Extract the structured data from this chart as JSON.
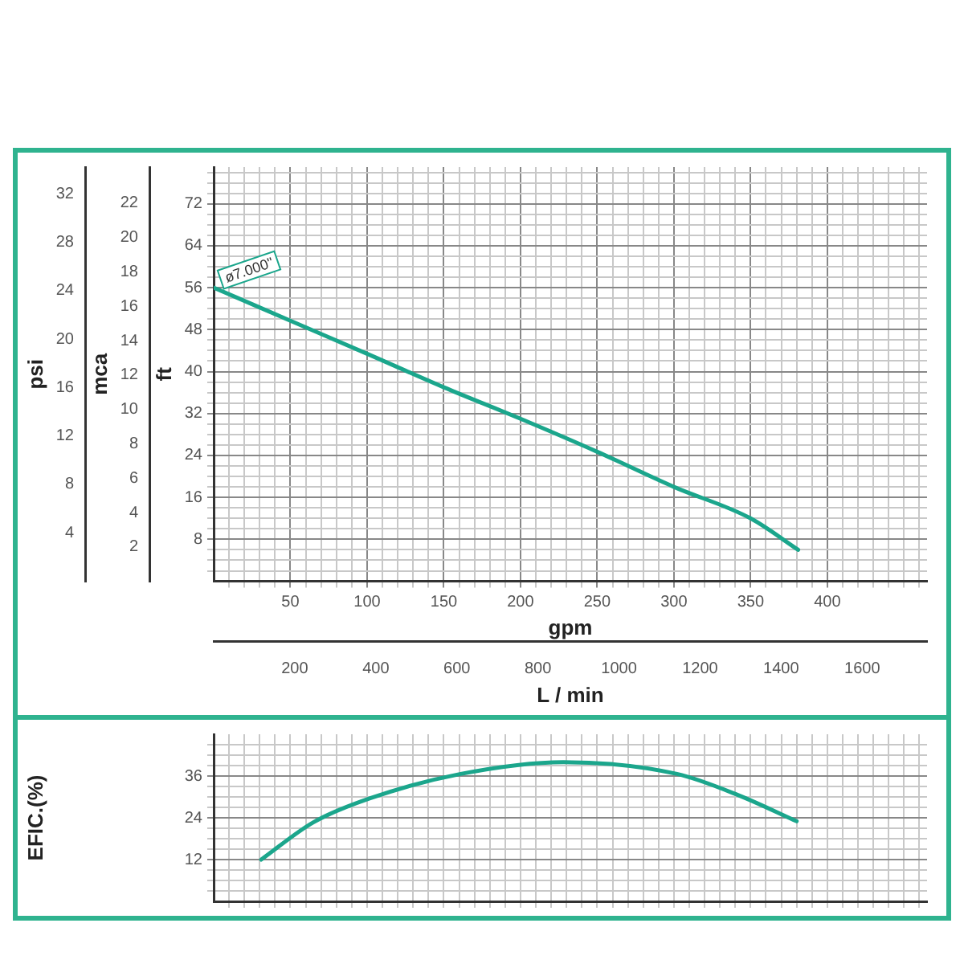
{
  "chart_data": [
    {
      "type": "line",
      "xlabel": "gpm",
      "x2label": "L / min",
      "ylabel": "ft",
      "y2label": "mca",
      "y3label": "psi",
      "xlim": [
        0,
        465
      ],
      "xticks": [
        {
          "value": 10,
          "label": null
        },
        {
          "value": 20,
          "label": null
        },
        {
          "value": 30,
          "label": null
        },
        {
          "value": 40,
          "label": null
        },
        50,
        {
          "value": 60,
          "label": null
        },
        {
          "value": 70,
          "label": null
        },
        {
          "value": 80,
          "label": null
        },
        {
          "value": 90,
          "label": null
        },
        100,
        {
          "value": 110,
          "label": null
        },
        {
          "value": 120,
          "label": null
        },
        {
          "value": 130,
          "label": null
        },
        {
          "value": 140,
          "label": null
        },
        150,
        {
          "value": 160,
          "label": null
        },
        {
          "value": 170,
          "label": null
        },
        {
          "value": 180,
          "label": null
        },
        {
          "value": 190,
          "label": null
        },
        200,
        {
          "value": 210,
          "label": null
        },
        {
          "value": 220,
          "label": null
        },
        {
          "value": 230,
          "label": null
        },
        {
          "value": 240,
          "label": null
        },
        250,
        {
          "value": 260,
          "label": null
        },
        {
          "value": 270,
          "label": null
        },
        {
          "value": 280,
          "label": null
        },
        {
          "value": 290,
          "label": null
        },
        300,
        {
          "value": 310,
          "label": null
        },
        {
          "value": 320,
          "label": null
        },
        {
          "value": 330,
          "label": null
        },
        {
          "value": 340,
          "label": null
        },
        350,
        {
          "value": 360,
          "label": null
        },
        {
          "value": 370,
          "label": null
        },
        {
          "value": 380,
          "label": null
        },
        {
          "value": 390,
          "label": null
        },
        400,
        {
          "value": 410,
          "label": null
        },
        {
          "value": 420,
          "label": null
        },
        {
          "value": 430,
          "label": null
        },
        {
          "value": 440,
          "label": null
        },
        {
          "value": 450,
          "label": null
        },
        {
          "value": 460,
          "label": null
        }
      ],
      "x2lim": [
        0,
        1760
      ],
      "x2ticks": [
        200,
        400,
        600,
        800,
        1000,
        1200,
        1400,
        1600
      ],
      "ylim": [
        0,
        79
      ],
      "yticks": [
        {
          "value": 2,
          "label": null
        },
        {
          "value": 4,
          "label": null
        },
        {
          "value": 6,
          "label": null
        },
        8,
        {
          "value": 10,
          "label": null
        },
        {
          "value": 12,
          "label": null
        },
        {
          "value": 14,
          "label": null
        },
        16,
        {
          "value": 18,
          "label": null
        },
        {
          "value": 20,
          "label": null
        },
        {
          "value": 22,
          "label": null
        },
        24,
        {
          "value": 26,
          "label": null
        },
        {
          "value": 28,
          "label": null
        },
        {
          "value": 30,
          "label": null
        },
        32,
        {
          "value": 34,
          "label": null
        },
        {
          "value": 36,
          "label": null
        },
        {
          "value": 38,
          "label": null
        },
        40,
        {
          "value": 42,
          "label": null
        },
        {
          "value": 44,
          "label": null
        },
        {
          "value": 46,
          "label": null
        },
        48,
        {
          "value": 50,
          "label": null
        },
        {
          "value": 52,
          "label": null
        },
        {
          "value": 54,
          "label": null
        },
        56,
        {
          "value": 58,
          "label": null
        },
        {
          "value": 60,
          "label": null
        },
        {
          "value": 62,
          "label": null
        },
        64,
        {
          "value": 66,
          "label": null
        },
        {
          "value": 68,
          "label": null
        },
        {
          "value": 70,
          "label": null
        },
        72,
        {
          "value": 74,
          "label": null
        },
        {
          "value": 76,
          "label": null
        },
        {
          "value": 78,
          "label": null
        }
      ],
      "y2lim": [
        0,
        24.1
      ],
      "y2ticks": [
        2,
        4,
        6,
        8,
        10,
        12,
        14,
        16,
        18,
        20,
        22
      ],
      "y3lim": [
        0,
        34.2
      ],
      "y3ticks": [
        4,
        8,
        12,
        16,
        20,
        24,
        28,
        32
      ],
      "series": [
        {
          "color": "#1ba68c",
          "x": [
            0,
            50,
            100,
            150,
            200,
            250,
            300,
            350,
            381
          ],
          "values": [
            56,
            49.7,
            43.4,
            37,
            31,
            24.7,
            18,
            12,
            6
          ]
        }
      ],
      "annotations": [
        {
          "text": "ø7.000\"",
          "x": 0,
          "y": 56
        }
      ],
      "grid": true,
      "marker": "none"
    },
    {
      "type": "line",
      "ylabel": "EFIC.(%)",
      "xlim": [
        0,
        465
      ],
      "xticks": [
        {
          "value": 10,
          "label": null
        },
        {
          "value": 20,
          "label": null
        },
        {
          "value": 30,
          "label": null
        },
        {
          "value": 40,
          "label": null
        },
        {
          "value": 50,
          "label": null
        },
        {
          "value": 60,
          "label": null
        },
        {
          "value": 70,
          "label": null
        },
        {
          "value": 80,
          "label": null
        },
        {
          "value": 90,
          "label": null
        },
        {
          "value": 100,
          "label": null
        },
        {
          "value": 110,
          "label": null
        },
        {
          "value": 120,
          "label": null
        },
        {
          "value": 130,
          "label": null
        },
        {
          "value": 140,
          "label": null
        },
        {
          "value": 150,
          "label": null
        },
        {
          "value": 160,
          "label": null
        },
        {
          "value": 170,
          "label": null
        },
        {
          "value": 180,
          "label": null
        },
        {
          "value": 190,
          "label": null
        },
        {
          "value": 200,
          "label": null
        },
        {
          "value": 210,
          "label": null
        },
        {
          "value": 220,
          "label": null
        },
        {
          "value": 230,
          "label": null
        },
        {
          "value": 240,
          "label": null
        },
        {
          "value": 250,
          "label": null
        },
        {
          "value": 260,
          "label": null
        },
        {
          "value": 270,
          "label": null
        },
        {
          "value": 280,
          "label": null
        },
        {
          "value": 290,
          "label": null
        },
        {
          "value": 300,
          "label": null
        },
        {
          "value": 310,
          "label": null
        },
        {
          "value": 320,
          "label": null
        },
        {
          "value": 330,
          "label": null
        },
        {
          "value": 340,
          "label": null
        },
        {
          "value": 350,
          "label": null
        },
        {
          "value": 360,
          "label": null
        },
        {
          "value": 370,
          "label": null
        },
        {
          "value": 380,
          "label": null
        },
        {
          "value": 390,
          "label": null
        },
        {
          "value": 400,
          "label": null
        },
        {
          "value": 410,
          "label": null
        },
        {
          "value": 420,
          "label": null
        },
        {
          "value": 430,
          "label": null
        },
        {
          "value": 440,
          "label": null
        },
        {
          "value": 450,
          "label": null
        },
        {
          "value": 460,
          "label": null
        }
      ],
      "ylim": [
        0,
        48
      ],
      "yticks": [
        {
          "value": 3,
          "label": null
        },
        {
          "value": 6,
          "label": null
        },
        {
          "value": 9,
          "label": null
        },
        12,
        {
          "value": 15,
          "label": null
        },
        {
          "value": 18,
          "label": null
        },
        {
          "value": 21,
          "label": null
        },
        24,
        {
          "value": 27,
          "label": null
        },
        {
          "value": 30,
          "label": null
        },
        {
          "value": 33,
          "label": null
        },
        36,
        {
          "value": 39,
          "label": null
        },
        {
          "value": 42,
          "label": null
        },
        {
          "value": 45,
          "label": null
        }
      ],
      "series": [
        {
          "color": "#1ba68c",
          "x": [
            31,
            65,
            102,
            161,
            228,
            302,
            342,
            380
          ],
          "values": [
            12,
            22.7,
            29.6,
            36.6,
            40,
            36.6,
            30.5,
            23
          ]
        }
      ],
      "tick_labels": "y",
      "grid": true,
      "marker": "none"
    }
  ]
}
